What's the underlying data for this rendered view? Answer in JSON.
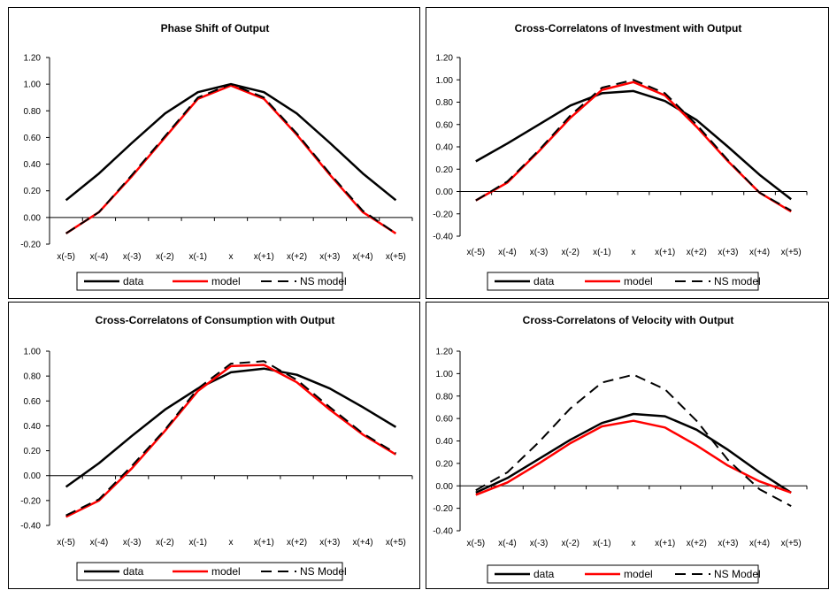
{
  "chart_data": [
    {
      "type": "line",
      "title": "Phase Shift of Output",
      "categories": [
        "x(-5)",
        "x(-4)",
        "x(-3)",
        "x(-2)",
        "x(-1)",
        "x",
        "x(+1)",
        "x(+2)",
        "x(+3)",
        "x(+4)",
        "x(+5)"
      ],
      "ylim": [
        -0.2,
        1.2
      ],
      "yticks": [
        "1.20",
        "1.00",
        "0.80",
        "0.60",
        "0.40",
        "0.20",
        "0.00",
        "-0.20"
      ],
      "series": [
        {
          "name": "data",
          "color": "#000000",
          "dash": "solid",
          "values": [
            0.13,
            0.33,
            0.56,
            0.78,
            0.94,
            1.0,
            0.94,
            0.78,
            0.56,
            0.33,
            0.13
          ]
        },
        {
          "name": "model",
          "color": "#ff0000",
          "dash": "solid",
          "values": [
            -0.12,
            0.04,
            0.31,
            0.6,
            0.89,
            0.99,
            0.89,
            0.62,
            0.32,
            0.04,
            -0.12
          ]
        },
        {
          "name": "NS model",
          "color": "#000000",
          "dash": "dash",
          "values": [
            -0.12,
            0.04,
            0.32,
            0.61,
            0.9,
            1.0,
            0.9,
            0.63,
            0.33,
            0.05,
            -0.12
          ]
        }
      ],
      "grid": false,
      "legend_position": "bottom"
    },
    {
      "type": "line",
      "title": "Cross-Correlatons of Investment with Output",
      "categories": [
        "x(-5)",
        "x(-4)",
        "x(-3)",
        "x(-2)",
        "x(-1)",
        "x",
        "x(+1)",
        "x(+2)",
        "x(+3)",
        "x(+4)",
        "x(+5)"
      ],
      "ylim": [
        -0.4,
        1.2
      ],
      "yticks": [
        "1.20",
        "1.00",
        "0.80",
        "0.60",
        "0.40",
        "0.20",
        "0.00",
        "-0.20",
        "-0.40"
      ],
      "series": [
        {
          "name": "data",
          "color": "#000000",
          "dash": "solid",
          "values": [
            0.27,
            0.43,
            0.6,
            0.77,
            0.88,
            0.9,
            0.81,
            0.64,
            0.4,
            0.15,
            -0.07
          ]
        },
        {
          "name": "model",
          "color": "#ff0000",
          "dash": "solid",
          "values": [
            -0.08,
            0.08,
            0.36,
            0.66,
            0.91,
            0.98,
            0.86,
            0.58,
            0.27,
            -0.01,
            -0.18
          ]
        },
        {
          "name": "NS model",
          "color": "#000000",
          "dash": "dash",
          "values": [
            -0.08,
            0.09,
            0.37,
            0.68,
            0.93,
            1.0,
            0.88,
            0.6,
            0.28,
            -0.01,
            -0.17
          ]
        }
      ],
      "grid": false,
      "legend_position": "bottom"
    },
    {
      "type": "line",
      "title": "Cross-Correlatons of Consumption with Output",
      "categories": [
        "x(-5)",
        "x(-4)",
        "x(-3)",
        "x(-2)",
        "x(-1)",
        "x",
        "x(+1)",
        "x(+2)",
        "x(+3)",
        "x(+4)",
        "x(+5)"
      ],
      "ylim": [
        -0.4,
        1.0
      ],
      "yticks": [
        "1.00",
        "0.80",
        "0.60",
        "0.40",
        "0.20",
        "0.00",
        "-0.20",
        "-0.40"
      ],
      "series": [
        {
          "name": "data",
          "color": "#000000",
          "dash": "solid",
          "values": [
            -0.09,
            0.1,
            0.32,
            0.53,
            0.7,
            0.83,
            0.86,
            0.81,
            0.7,
            0.55,
            0.39
          ]
        },
        {
          "name": "model",
          "color": "#ff0000",
          "dash": "solid",
          "values": [
            -0.33,
            -0.2,
            0.06,
            0.36,
            0.68,
            0.88,
            0.89,
            0.75,
            0.53,
            0.33,
            0.17
          ]
        },
        {
          "name": "NS Model",
          "color": "#000000",
          "dash": "dash",
          "values": [
            -0.32,
            -0.19,
            0.08,
            0.37,
            0.7,
            0.9,
            0.92,
            0.77,
            0.55,
            0.34,
            0.18
          ]
        }
      ],
      "grid": false,
      "legend_position": "bottom"
    },
    {
      "type": "line",
      "title": "Cross-Correlatons of Velocity with Output",
      "categories": [
        "x(-5)",
        "x(-4)",
        "x(-3)",
        "x(-2)",
        "x(-1)",
        "x",
        "x(+1)",
        "x(+2)",
        "x(+3)",
        "x(+4)",
        "x(+5)"
      ],
      "ylim": [
        -0.4,
        1.2
      ],
      "yticks": [
        "1.20",
        "1.00",
        "0.80",
        "0.60",
        "0.40",
        "0.20",
        "0.00",
        "-0.20",
        "-0.40"
      ],
      "series": [
        {
          "name": "data",
          "color": "#000000",
          "dash": "solid",
          "values": [
            -0.06,
            0.07,
            0.24,
            0.41,
            0.56,
            0.64,
            0.62,
            0.5,
            0.32,
            0.12,
            -0.06
          ]
        },
        {
          "name": "model",
          "color": "#ff0000",
          "dash": "solid",
          "values": [
            -0.08,
            0.03,
            0.2,
            0.38,
            0.53,
            0.58,
            0.52,
            0.36,
            0.18,
            0.04,
            -0.06
          ]
        },
        {
          "name": "NS Model",
          "color": "#000000",
          "dash": "dash",
          "values": [
            -0.04,
            0.12,
            0.39,
            0.69,
            0.92,
            0.99,
            0.86,
            0.58,
            0.23,
            -0.03,
            -0.18
          ]
        }
      ],
      "grid": false,
      "legend_position": "bottom"
    }
  ]
}
